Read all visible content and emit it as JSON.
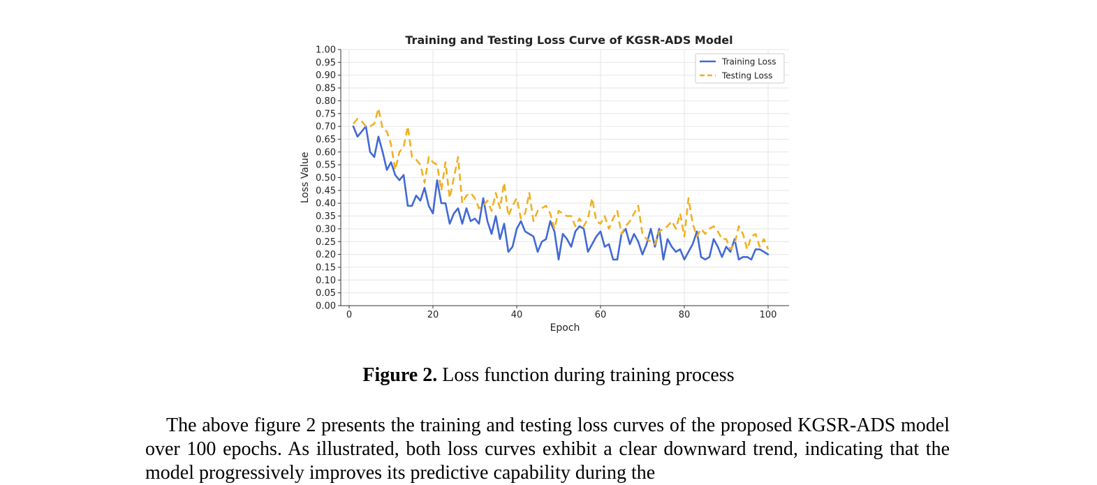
{
  "figure": {
    "caption_label": "Figure 2.",
    "caption_text": " Loss function during training process"
  },
  "paragraph": "The above figure 2 presents the training and testing loss curves of the proposed KGSR-ADS model over 100 epochs. As illustrated, both loss curves exhibit a clear downward trend, indicating that the model progressively improves its predictive capability during the",
  "colors": {
    "training": "#4169d6",
    "testing": "#f0b020"
  },
  "chart_data": {
    "type": "line",
    "title": "Training and Testing Loss Curve of KGSR-ADS Model",
    "xlabel": "Epoch",
    "ylabel": "Loss Value",
    "xlim": [
      -2,
      105
    ],
    "ylim": [
      0,
      1.0
    ],
    "xticks": [
      0,
      20,
      40,
      60,
      80,
      100
    ],
    "yticks": [
      0.0,
      0.05,
      0.1,
      0.15,
      0.2,
      0.25,
      0.3,
      0.35,
      0.4,
      0.45,
      0.5,
      0.55,
      0.6,
      0.65,
      0.7,
      0.75,
      0.8,
      0.85,
      0.9,
      0.95,
      1.0
    ],
    "grid": true,
    "legend_position": "top-right",
    "x_start": 1,
    "series": [
      {
        "name": "Training Loss",
        "style": "solid",
        "values": [
          0.7,
          0.66,
          0.68,
          0.7,
          0.6,
          0.58,
          0.66,
          0.6,
          0.53,
          0.56,
          0.51,
          0.49,
          0.51,
          0.39,
          0.39,
          0.43,
          0.41,
          0.46,
          0.39,
          0.36,
          0.49,
          0.4,
          0.4,
          0.32,
          0.36,
          0.38,
          0.32,
          0.38,
          0.33,
          0.34,
          0.32,
          0.42,
          0.33,
          0.28,
          0.35,
          0.26,
          0.32,
          0.21,
          0.23,
          0.3,
          0.33,
          0.29,
          0.28,
          0.27,
          0.21,
          0.25,
          0.26,
          0.33,
          0.29,
          0.18,
          0.28,
          0.26,
          0.23,
          0.29,
          0.31,
          0.3,
          0.21,
          0.24,
          0.27,
          0.29,
          0.23,
          0.24,
          0.18,
          0.18,
          0.28,
          0.3,
          0.24,
          0.28,
          0.25,
          0.2,
          0.24,
          0.3,
          0.23,
          0.3,
          0.18,
          0.26,
          0.23,
          0.21,
          0.22,
          0.18,
          0.21,
          0.24,
          0.29,
          0.19,
          0.18,
          0.19,
          0.26,
          0.23,
          0.19,
          0.23,
          0.21,
          0.26,
          0.18,
          0.19,
          0.19,
          0.18,
          0.22,
          0.22,
          0.21,
          0.2
        ]
      },
      {
        "name": "Testing Loss",
        "style": "dashed",
        "values": [
          0.71,
          0.73,
          0.72,
          0.7,
          0.7,
          0.71,
          0.77,
          0.69,
          0.68,
          0.63,
          0.53,
          0.6,
          0.62,
          0.7,
          0.58,
          0.57,
          0.55,
          0.48,
          0.58,
          0.56,
          0.55,
          0.45,
          0.56,
          0.42,
          0.5,
          0.58,
          0.4,
          0.43,
          0.44,
          0.42,
          0.38,
          0.39,
          0.41,
          0.37,
          0.44,
          0.38,
          0.48,
          0.35,
          0.39,
          0.42,
          0.34,
          0.36,
          0.44,
          0.33,
          0.37,
          0.38,
          0.39,
          0.36,
          0.3,
          0.37,
          0.36,
          0.35,
          0.35,
          0.31,
          0.34,
          0.31,
          0.34,
          0.42,
          0.33,
          0.32,
          0.35,
          0.3,
          0.34,
          0.37,
          0.28,
          0.31,
          0.33,
          0.36,
          0.39,
          0.28,
          0.26,
          0.25,
          0.24,
          0.29,
          0.3,
          0.31,
          0.33,
          0.3,
          0.36,
          0.27,
          0.42,
          0.32,
          0.27,
          0.3,
          0.28,
          0.3,
          0.31,
          0.29,
          0.26,
          0.26,
          0.22,
          0.24,
          0.31,
          0.28,
          0.22,
          0.27,
          0.28,
          0.23,
          0.26,
          0.22
        ]
      }
    ]
  }
}
